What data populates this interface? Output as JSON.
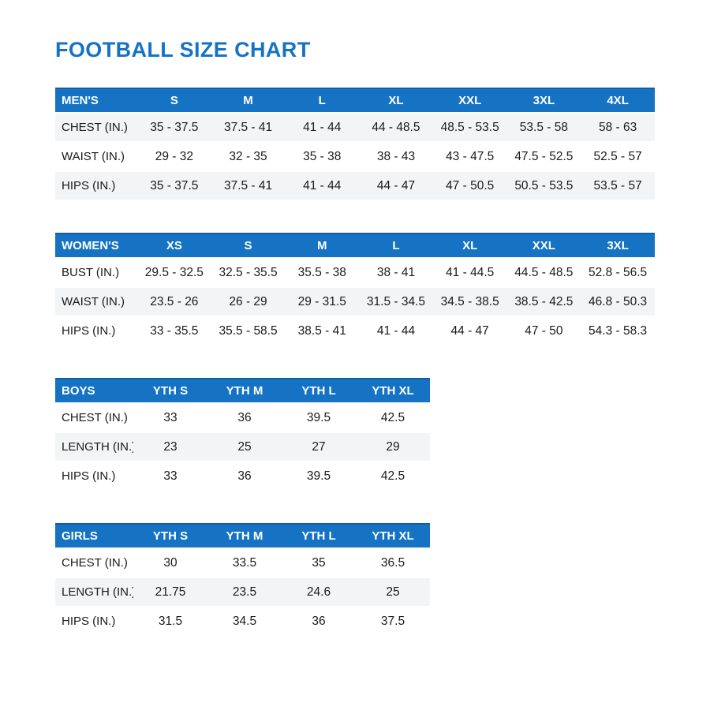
{
  "page": {
    "title": "FOOTBALL SIZE CHART"
  },
  "colors": {
    "accent_blue": "#1673c4",
    "header_top_border": "#0f5fa8",
    "row_stripe": "#f3f4f6",
    "text": "#1a1a1a"
  },
  "chart_data": [
    {
      "type": "table",
      "id": "mens",
      "header": [
        "MEN'S",
        "S",
        "M",
        "L",
        "XL",
        "XXL",
        "3XL",
        "4XL"
      ],
      "rows": [
        {
          "label": "CHEST (IN.)",
          "values": [
            "35 - 37.5",
            "37.5 - 41",
            "41 - 44",
            "44 - 48.5",
            "48.5 - 53.5",
            "53.5 - 58",
            "58 - 63"
          ]
        },
        {
          "label": "WAIST (IN.)",
          "values": [
            "29 - 32",
            "32 - 35",
            "35 - 38",
            "38 - 43",
            "43 - 47.5",
            "47.5 - 52.5",
            "52.5 - 57"
          ]
        },
        {
          "label": "HIPS (IN.)",
          "values": [
            "35 - 37.5",
            "37.5 - 41",
            "41 - 44",
            "44 - 47",
            "47 - 50.5",
            "50.5 - 53.5",
            "53.5 - 57"
          ]
        }
      ],
      "layout": {
        "width": "wide",
        "stripe": "odd"
      }
    },
    {
      "type": "table",
      "id": "womens",
      "header": [
        "WOMEN'S",
        "XS",
        "S",
        "M",
        "L",
        "XL",
        "XXL",
        "3XL"
      ],
      "rows": [
        {
          "label": "BUST (IN.)",
          "values": [
            "29.5 - 32.5",
            "32.5 - 35.5",
            "35.5 - 38",
            "38 - 41",
            "41 - 44.5",
            "44.5 - 48.5",
            "52.8 - 56.5"
          ]
        },
        {
          "label": "WAIST (IN.)",
          "values": [
            "23.5 - 26",
            "26 - 29",
            "29 - 31.5",
            "31.5 - 34.5",
            "34.5 - 38.5",
            "38.5 - 42.5",
            "46.8 - 50.3"
          ]
        },
        {
          "label": "HIPS (IN.)",
          "values": [
            "33 - 35.5",
            "35.5 - 58.5",
            "38.5 - 41",
            "41 - 44",
            "44 - 47",
            "47 - 50",
            "54.3 - 58.3"
          ]
        }
      ],
      "layout": {
        "width": "wide",
        "stripe": "even"
      }
    },
    {
      "type": "table",
      "id": "boys",
      "header": [
        "BOYS",
        "YTH S",
        "YTH M",
        "YTH L",
        "YTH XL"
      ],
      "rows": [
        {
          "label": "CHEST (IN.)",
          "values": [
            "33",
            "36",
            "39.5",
            "42.5"
          ]
        },
        {
          "label": "LENGTH (IN.)",
          "values": [
            "23",
            "25",
            "27",
            "29"
          ]
        },
        {
          "label": "HIPS (IN.)",
          "values": [
            "33",
            "36",
            "39.5",
            "42.5"
          ]
        }
      ],
      "layout": {
        "width": "narrow",
        "stripe": "even"
      }
    },
    {
      "type": "table",
      "id": "girls",
      "header": [
        "GIRLS",
        "YTH S",
        "YTH M",
        "YTH L",
        "YTH XL"
      ],
      "rows": [
        {
          "label": "CHEST (IN.)",
          "values": [
            "30",
            "33.5",
            "35",
            "36.5"
          ]
        },
        {
          "label": "LENGTH (IN.)",
          "values": [
            "21.75",
            "23.5",
            "24.6",
            "25"
          ]
        },
        {
          "label": "HIPS (IN.)",
          "values": [
            "31.5",
            "34.5",
            "36",
            "37.5"
          ]
        }
      ],
      "layout": {
        "width": "narrow",
        "stripe": "even"
      }
    }
  ]
}
